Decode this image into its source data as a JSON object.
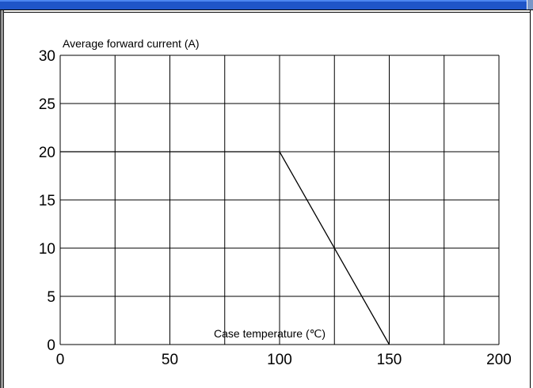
{
  "chart_data": {
    "type": "line",
    "title": "",
    "xlabel": "Case temperature (℃)",
    "ylabel": "Average forward current (A)",
    "xlim": [
      0,
      200
    ],
    "ylim": [
      0,
      30
    ],
    "xticks": [
      "0",
      "50",
      "100",
      "150",
      "200"
    ],
    "yticks": [
      "0",
      "5",
      "10",
      "15",
      "20",
      "25",
      "30"
    ],
    "grid": true,
    "series": [
      {
        "x": [
          0,
          100,
          150
        ],
        "y": [
          20,
          20,
          0
        ],
        "color": "#000000"
      }
    ],
    "reference_lines": [
      {
        "x": [
          0,
          130
        ],
        "y": [
          20,
          20
        ]
      }
    ]
  },
  "colors": {
    "titlebar": "#1f55c8",
    "line": "#000000",
    "grid": "#000000"
  }
}
